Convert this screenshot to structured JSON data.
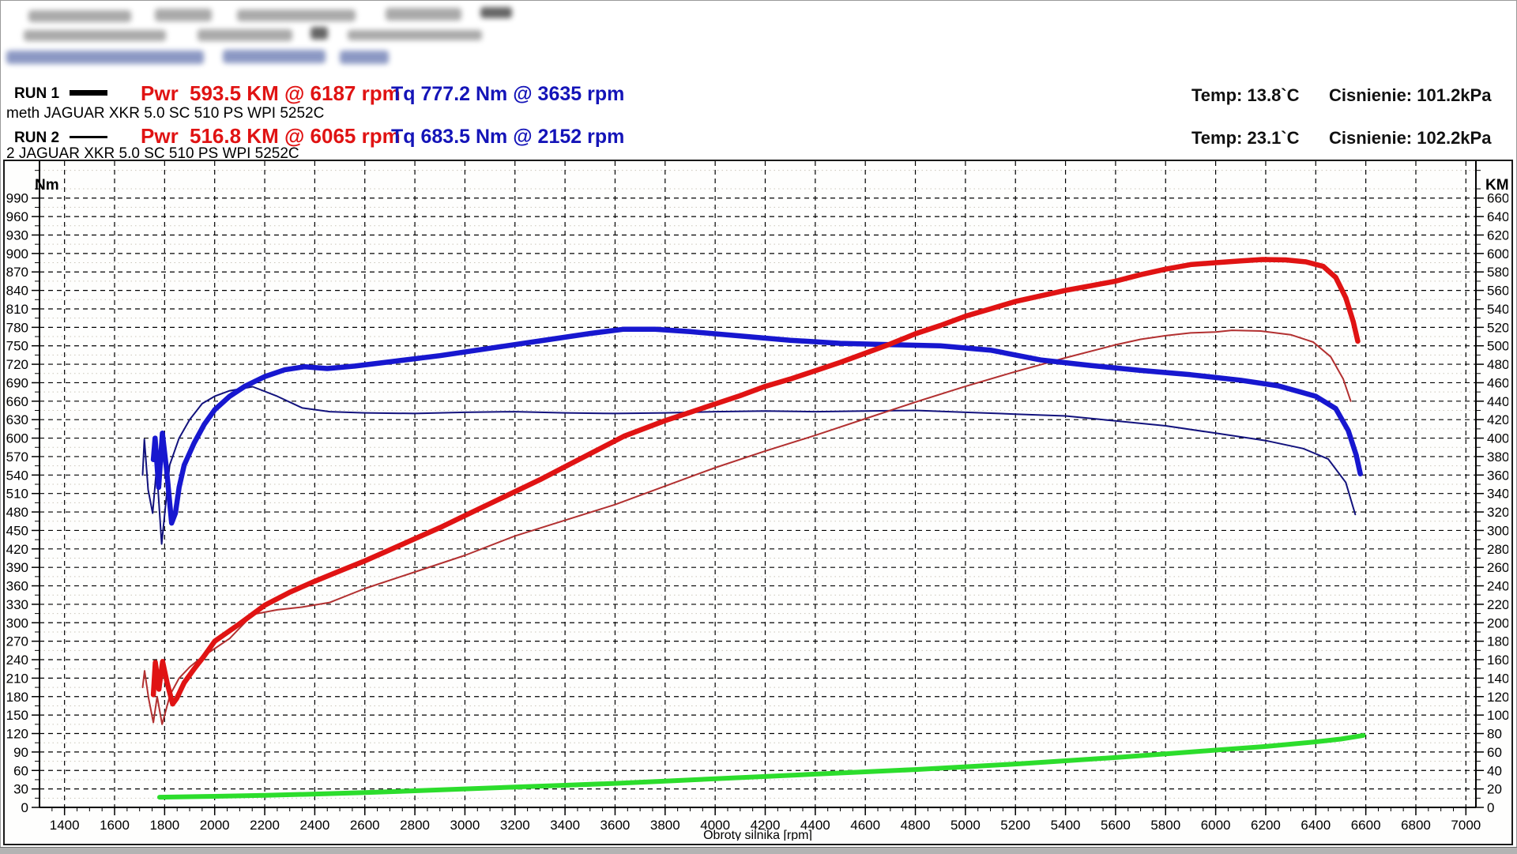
{
  "accent_colors": {
    "power_red": "#e01313",
    "power_red_thin": "#b23030",
    "torque_blue": "#1717cf",
    "torque_blue_thin": "#12127d",
    "green_line": "#2cdd2c"
  },
  "runs": [
    {
      "label": "RUN 1",
      "power_label": "Pwr",
      "power_value": "593.5 KM @ 6187 rpm",
      "torque_value": "Tq 777.2 Nm @ 3635 rpm",
      "temp": "Temp: 13.8`C",
      "pressure": "Cisnienie: 101.2kPa",
      "description": "meth JAGUAR XKR 5.0 SC 510 PS WPI 5252C"
    },
    {
      "label": "RUN 2",
      "power_label": "Pwr",
      "power_value": "516.8 KM @ 6065 rpm",
      "torque_value": "Tq 683.5 Nm @ 2152 rpm",
      "temp": "Temp: 23.1`C",
      "pressure": "Cisnienie: 102.2kPa",
      "description": "2 JAGUAR XKR 5.0 SC 510 PS WPI 5252C"
    }
  ],
  "chart_data": {
    "type": "line",
    "title": "",
    "xlabel": "Obroty silnika [rpm]",
    "x_axis": {
      "min": 1300,
      "max": 7040,
      "tick_min": 1400,
      "tick_max": 7000,
      "tick_step": 200,
      "minor_step": 50
    },
    "left_axis": {
      "label": "Nm",
      "min": 0,
      "max": 1050,
      "tick_max": 990,
      "tick_step": 30,
      "minor_step": 15
    },
    "right_axis": {
      "label": "KM",
      "min": 0,
      "max": 700,
      "tick_max": 660,
      "tick_step": 20,
      "minor_step": 10
    },
    "grid": {
      "major_color": "#000000",
      "minor_color": "#c9c5b9"
    },
    "legend_position": "top",
    "series": [
      {
        "name": "green-line",
        "axis": "right",
        "color": "#2cdd2c",
        "width": 6,
        "points": [
          [
            1780,
            11
          ],
          [
            2000,
            12
          ],
          [
            2200,
            13
          ],
          [
            2400,
            14.5
          ],
          [
            2600,
            16
          ],
          [
            2800,
            18
          ],
          [
            3000,
            20
          ],
          [
            3200,
            22
          ],
          [
            3400,
            24
          ],
          [
            3600,
            26
          ],
          [
            3800,
            28.5
          ],
          [
            4000,
            31
          ],
          [
            4200,
            33.5
          ],
          [
            4400,
            36
          ],
          [
            4600,
            38.5
          ],
          [
            4800,
            41
          ],
          [
            5000,
            44
          ],
          [
            5200,
            47
          ],
          [
            5400,
            50.5
          ],
          [
            5600,
            54
          ],
          [
            5800,
            58
          ],
          [
            6000,
            62
          ],
          [
            6200,
            66
          ],
          [
            6400,
            71
          ],
          [
            6500,
            74
          ],
          [
            6590,
            78
          ]
        ]
      },
      {
        "name": "run2-torque-Nm",
        "axis": "left",
        "color": "#12127d",
        "width": 2,
        "points": [
          [
            1712,
            540
          ],
          [
            1719,
            598
          ],
          [
            1734,
            516
          ],
          [
            1752,
            478
          ],
          [
            1768,
            552
          ],
          [
            1788,
            428
          ],
          [
            1820,
            556
          ],
          [
            1858,
            600
          ],
          [
            1900,
            630
          ],
          [
            1950,
            656
          ],
          [
            2000,
            668
          ],
          [
            2060,
            677
          ],
          [
            2152,
            683.5
          ],
          [
            2250,
            668
          ],
          [
            2350,
            649
          ],
          [
            2460,
            643
          ],
          [
            2600,
            641
          ],
          [
            2800,
            640
          ],
          [
            3000,
            642
          ],
          [
            3200,
            643
          ],
          [
            3400,
            641
          ],
          [
            3600,
            640
          ],
          [
            3800,
            641
          ],
          [
            4000,
            643
          ],
          [
            4200,
            644
          ],
          [
            4400,
            643
          ],
          [
            4600,
            644
          ],
          [
            4800,
            645
          ],
          [
            5000,
            642
          ],
          [
            5200,
            639
          ],
          [
            5400,
            636
          ],
          [
            5600,
            628
          ],
          [
            5800,
            620
          ],
          [
            6000,
            608
          ],
          [
            6200,
            596
          ],
          [
            6350,
            583
          ],
          [
            6450,
            566
          ],
          [
            6520,
            528
          ],
          [
            6558,
            476
          ]
        ]
      },
      {
        "name": "run2-power-KM",
        "axis": "right",
        "color": "#b23030",
        "width": 2,
        "points": [
          [
            1712,
            130
          ],
          [
            1720,
            148
          ],
          [
            1736,
            118
          ],
          [
            1755,
            92
          ],
          [
            1770,
            120
          ],
          [
            1790,
            90
          ],
          [
            1822,
            122
          ],
          [
            1858,
            140
          ],
          [
            1900,
            152
          ],
          [
            1950,
            163
          ],
          [
            2000,
            172
          ],
          [
            2060,
            183
          ],
          [
            2152,
            209
          ],
          [
            2250,
            214
          ],
          [
            2350,
            217
          ],
          [
            2460,
            222
          ],
          [
            2600,
            237
          ],
          [
            2800,
            255
          ],
          [
            3000,
            273
          ],
          [
            3200,
            294
          ],
          [
            3400,
            311
          ],
          [
            3600,
            328
          ],
          [
            3800,
            348
          ],
          [
            4000,
            368
          ],
          [
            4200,
            386
          ],
          [
            4400,
            403
          ],
          [
            4600,
            421
          ],
          [
            4800,
            439
          ],
          [
            5000,
            456
          ],
          [
            5200,
            472
          ],
          [
            5400,
            487
          ],
          [
            5600,
            501
          ],
          [
            5700,
            507
          ],
          [
            5800,
            511
          ],
          [
            5900,
            514
          ],
          [
            6000,
            515
          ],
          [
            6065,
            516.8
          ],
          [
            6180,
            516
          ],
          [
            6300,
            512
          ],
          [
            6390,
            504
          ],
          [
            6460,
            488
          ],
          [
            6510,
            464
          ],
          [
            6540,
            440
          ]
        ]
      },
      {
        "name": "run1-torque-Nm",
        "axis": "left",
        "color": "#1717cf",
        "width": 6.5,
        "points": [
          [
            1755,
            565
          ],
          [
            1762,
            600
          ],
          [
            1776,
            520
          ],
          [
            1791,
            608
          ],
          [
            1808,
            548
          ],
          [
            1828,
            462
          ],
          [
            1843,
            478
          ],
          [
            1858,
            520
          ],
          [
            1878,
            556
          ],
          [
            1918,
            592
          ],
          [
            1958,
            622
          ],
          [
            2000,
            646
          ],
          [
            2060,
            668
          ],
          [
            2120,
            684
          ],
          [
            2200,
            700
          ],
          [
            2280,
            711
          ],
          [
            2360,
            716
          ],
          [
            2450,
            713
          ],
          [
            2560,
            717
          ],
          [
            2700,
            724
          ],
          [
            2900,
            734
          ],
          [
            3100,
            746
          ],
          [
            3300,
            758
          ],
          [
            3500,
            770
          ],
          [
            3635,
            777
          ],
          [
            3760,
            777
          ],
          [
            3900,
            773
          ],
          [
            4100,
            766
          ],
          [
            4300,
            759
          ],
          [
            4500,
            754
          ],
          [
            4700,
            752
          ],
          [
            4900,
            750
          ],
          [
            5100,
            743
          ],
          [
            5300,
            727
          ],
          [
            5500,
            718
          ],
          [
            5700,
            710
          ],
          [
            5900,
            703
          ],
          [
            6100,
            694
          ],
          [
            6250,
            685
          ],
          [
            6400,
            668
          ],
          [
            6480,
            648
          ],
          [
            6530,
            612
          ],
          [
            6562,
            572
          ],
          [
            6578,
            542
          ]
        ]
      },
      {
        "name": "run1-power-KM",
        "axis": "right",
        "color": "#e01313",
        "width": 6.5,
        "points": [
          [
            1755,
            122
          ],
          [
            1763,
            157
          ],
          [
            1777,
            128
          ],
          [
            1792,
            158
          ],
          [
            1810,
            135
          ],
          [
            1832,
            112
          ],
          [
            1848,
            118
          ],
          [
            1878,
            135
          ],
          [
            1918,
            150
          ],
          [
            1958,
            164
          ],
          [
            2000,
            180
          ],
          [
            2100,
            199
          ],
          [
            2200,
            219
          ],
          [
            2300,
            233
          ],
          [
            2400,
            245
          ],
          [
            2500,
            256
          ],
          [
            2600,
            267
          ],
          [
            2700,
            279
          ],
          [
            2800,
            291
          ],
          [
            2900,
            303
          ],
          [
            3000,
            316
          ],
          [
            3100,
            329
          ],
          [
            3200,
            342
          ],
          [
            3300,
            355
          ],
          [
            3400,
            369
          ],
          [
            3500,
            383
          ],
          [
            3635,
            402
          ],
          [
            3800,
            419
          ],
          [
            3900,
            428
          ],
          [
            4000,
            437
          ],
          [
            4100,
            446
          ],
          [
            4200,
            456
          ],
          [
            4300,
            464
          ],
          [
            4400,
            473
          ],
          [
            4500,
            482
          ],
          [
            4600,
            492
          ],
          [
            4700,
            502
          ],
          [
            4800,
            513
          ],
          [
            4900,
            522
          ],
          [
            5000,
            532
          ],
          [
            5100,
            540
          ],
          [
            5200,
            548
          ],
          [
            5300,
            554
          ],
          [
            5400,
            560
          ],
          [
            5500,
            565
          ],
          [
            5600,
            570
          ],
          [
            5700,
            577
          ],
          [
            5800,
            583
          ],
          [
            5900,
            588
          ],
          [
            6000,
            590
          ],
          [
            6100,
            592
          ],
          [
            6187,
            593.5
          ],
          [
            6280,
            593
          ],
          [
            6360,
            591
          ],
          [
            6430,
            586
          ],
          [
            6480,
            574
          ],
          [
            6520,
            552
          ],
          [
            6550,
            526
          ],
          [
            6568,
            505
          ]
        ]
      }
    ]
  }
}
